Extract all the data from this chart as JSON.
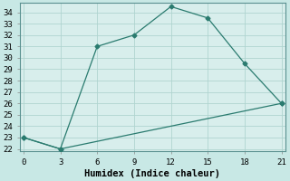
{
  "xlabel": "Humidex (Indice chaleur)",
  "line1_x": [
    0,
    3,
    6,
    9,
    12,
    15,
    18,
    21
  ],
  "line1_y": [
    23,
    22,
    31,
    32,
    34.5,
    33.5,
    29.5,
    26
  ],
  "line2_x": [
    0,
    3,
    21
  ],
  "line2_y": [
    23,
    22,
    26
  ],
  "line_color": "#2a7b6f",
  "bg_color": "#c8e8e5",
  "grid_color": "#b0d4d0",
  "plot_bg": "#d8eeec",
  "xlim": [
    -0.3,
    21.3
  ],
  "ylim": [
    21.8,
    34.8
  ],
  "xticks": [
    0,
    3,
    6,
    9,
    12,
    15,
    18,
    21
  ],
  "yticks": [
    22,
    23,
    24,
    25,
    26,
    27,
    28,
    29,
    30,
    31,
    32,
    33,
    34
  ],
  "marker": "D",
  "marker_size": 2.5,
  "font_family": "monospace",
  "xlabel_fontsize": 7.5,
  "tick_fontsize": 6.5,
  "linewidth": 0.9
}
